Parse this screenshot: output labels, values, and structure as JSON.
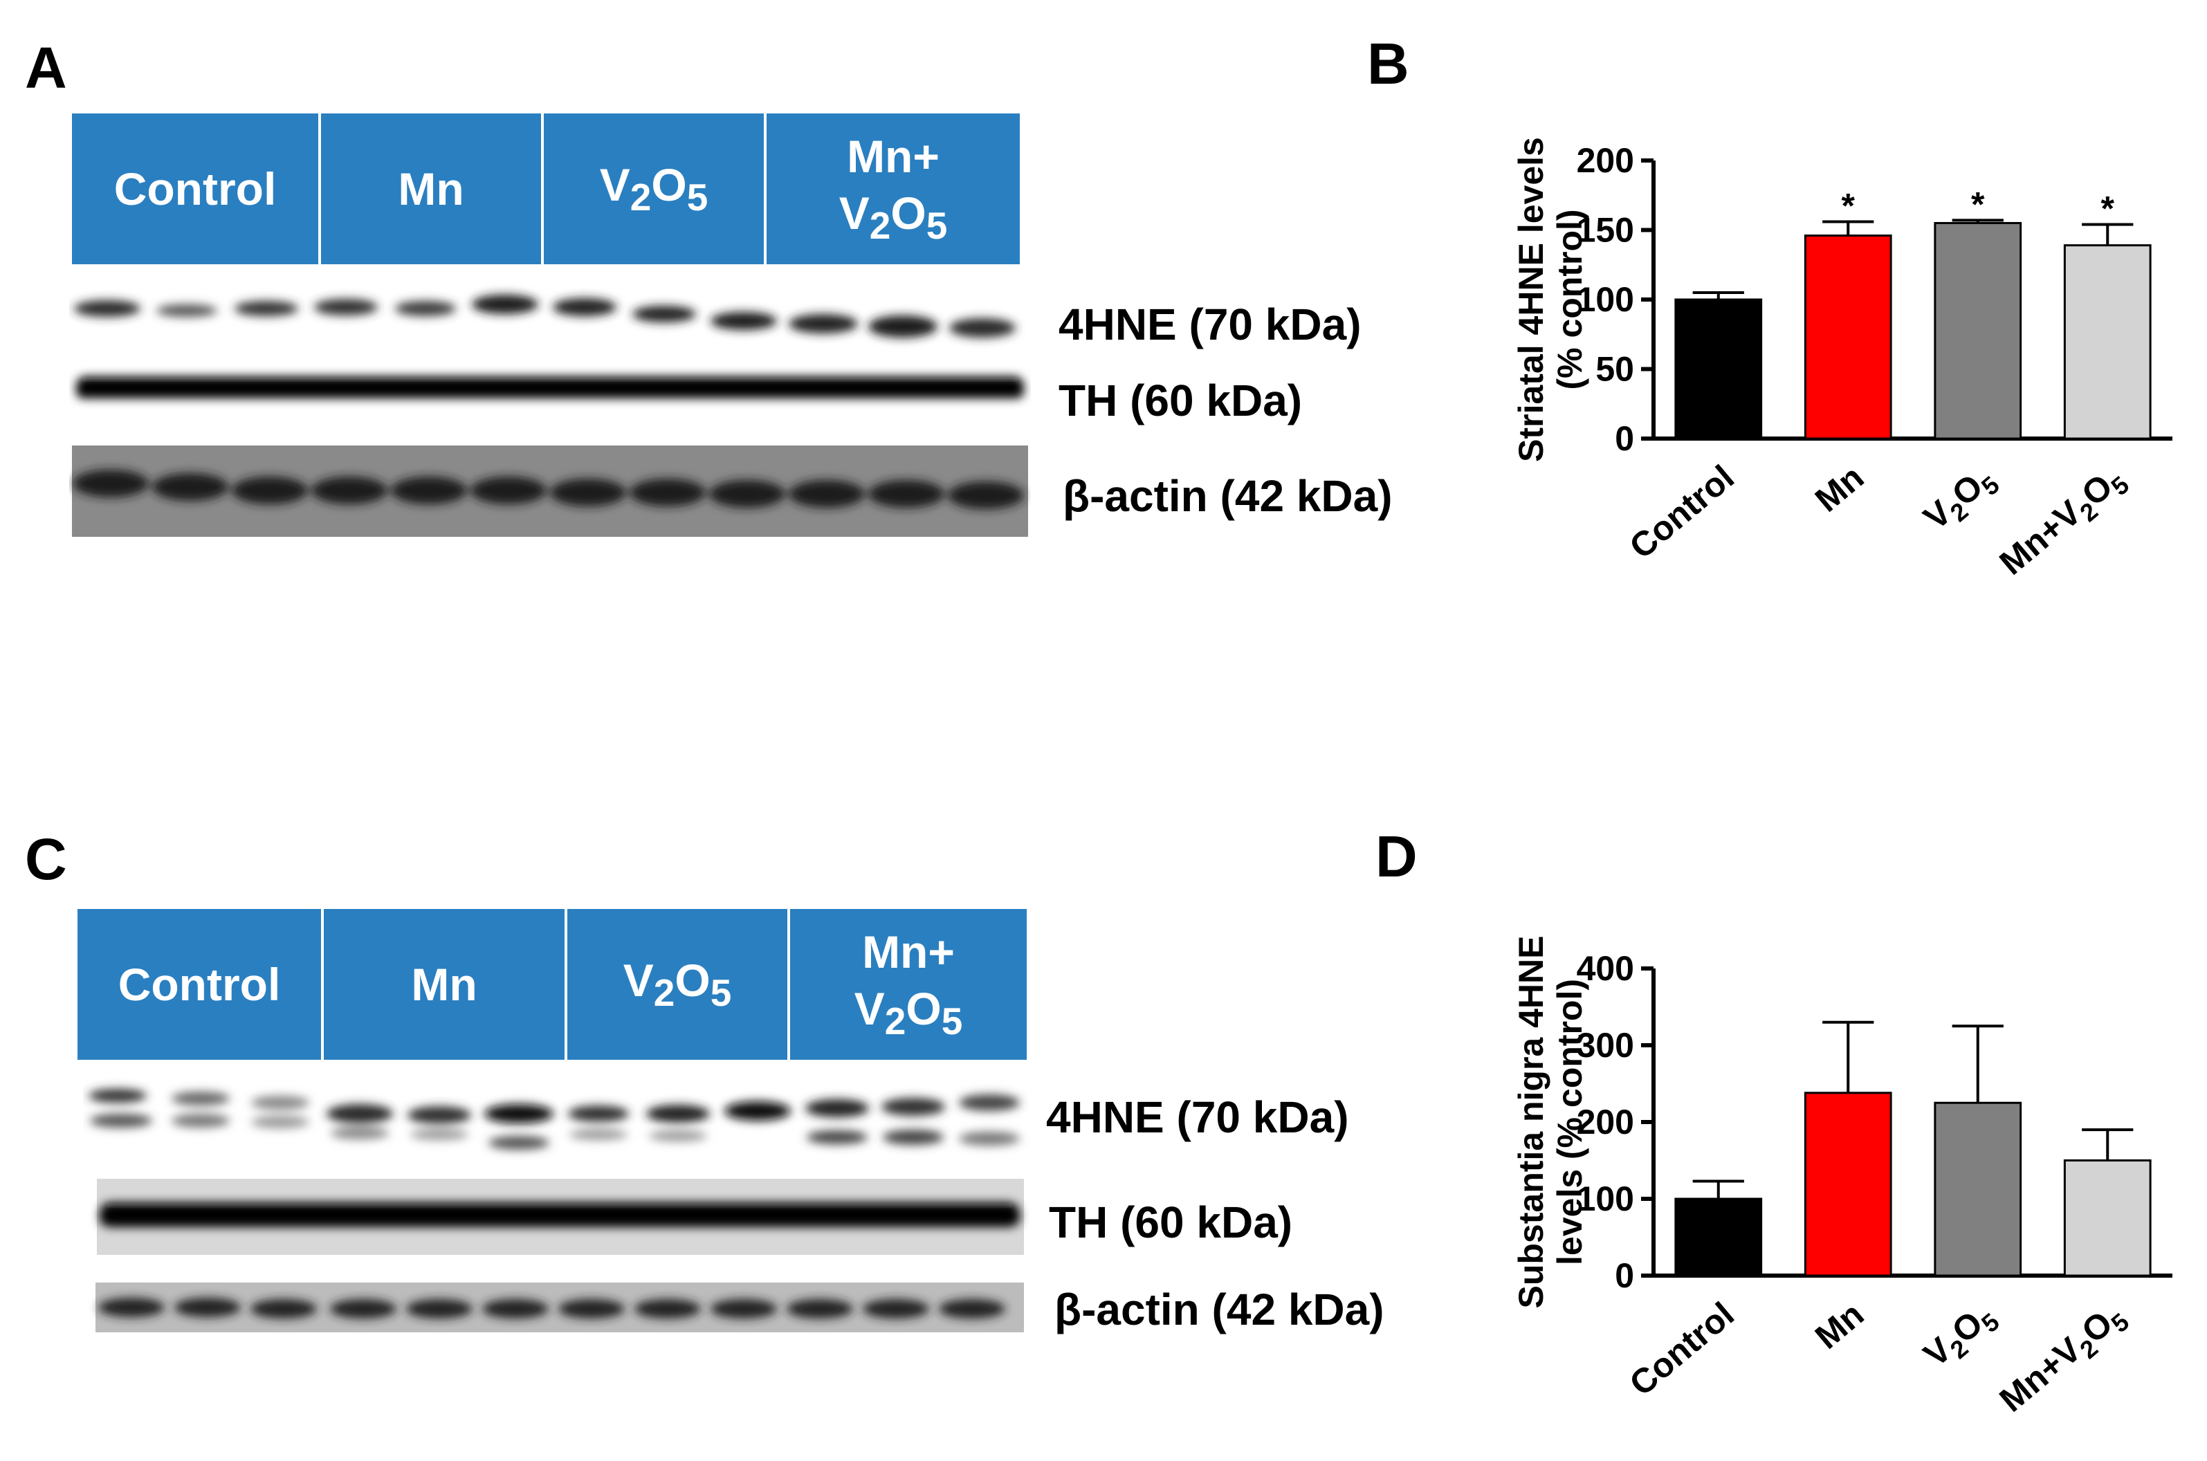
{
  "panels": {
    "A": {
      "letter": "A",
      "groups": [
        {
          "name": "Control"
        },
        {
          "name": "Mn"
        },
        {
          "name": "V2O5",
          "base": "V",
          "sub1": "2",
          "mid": "O",
          "sub2": "5"
        },
        {
          "name": "Mn+ V2O5",
          "line1": "Mn+",
          "base": "V",
          "sub1": "2",
          "mid": "O",
          "sub2": "5"
        }
      ],
      "bands": [
        "4HNE (70 kDa)",
        "TH (60 kDa)",
        "β-actin (42 kDa)"
      ]
    },
    "C": {
      "letter": "C",
      "groups": [
        {
          "name": "Control"
        },
        {
          "name": "Mn"
        },
        {
          "name": "V2O5",
          "base": "V",
          "sub1": "2",
          "mid": "O",
          "sub2": "5"
        },
        {
          "name": "Mn+ V2O5",
          "line1": "Mn+",
          "base": "V",
          "sub1": "2",
          "mid": "O",
          "sub2": "5"
        }
      ],
      "bands": [
        "4HNE (70 kDa)",
        "TH (60 kDa)",
        "β-actin (42 kDa)"
      ]
    },
    "B": {
      "letter": "B"
    },
    "D": {
      "letter": "D"
    }
  },
  "chart_data": [
    {
      "panel": "B",
      "type": "bar",
      "ylabel_lines": [
        "Striatal 4HNE levels",
        "(% control)"
      ],
      "categories": [
        "Control",
        "Mn",
        "V2O5",
        "Mn+V2O5"
      ],
      "category_parts": [
        {
          "base": "Control"
        },
        {
          "base": "Mn"
        },
        {
          "base": "V",
          "sub1": "2",
          "mid": "O",
          "sub2": "5"
        },
        {
          "base": "Mn+V",
          "sub1": "2",
          "mid": "O",
          "sub2": "5"
        }
      ],
      "values": [
        100,
        146,
        155,
        139
      ],
      "errors": [
        5,
        10,
        2,
        15
      ],
      "annotations": [
        "",
        "*",
        "*",
        "*"
      ],
      "colors": [
        "#000000",
        "#ff0000",
        "#808080",
        "#d3d3d3"
      ],
      "ylim": [
        0,
        200
      ],
      "yticks": [
        0,
        50,
        100,
        150,
        200
      ],
      "grid": false
    },
    {
      "panel": "D",
      "type": "bar",
      "ylabel_lines": [
        "Substantia nigra 4HNE",
        "levels (% control)"
      ],
      "categories": [
        "Control",
        "Mn",
        "V2O5",
        "Mn+V2O5"
      ],
      "category_parts": [
        {
          "base": "Control"
        },
        {
          "base": "Mn"
        },
        {
          "base": "V",
          "sub1": "2",
          "mid": "O",
          "sub2": "5"
        },
        {
          "base": "Mn+V",
          "sub1": "2",
          "mid": "O",
          "sub2": "5"
        }
      ],
      "values": [
        100,
        238,
        225,
        150
      ],
      "errors": [
        23,
        92,
        100,
        40
      ],
      "annotations": [
        "",
        "",
        "",
        ""
      ],
      "colors": [
        "#000000",
        "#ff0000",
        "#808080",
        "#d3d3d3"
      ],
      "ylim": [
        0,
        400
      ],
      "yticks": [
        0,
        100,
        200,
        300,
        400
      ],
      "grid": false
    }
  ]
}
